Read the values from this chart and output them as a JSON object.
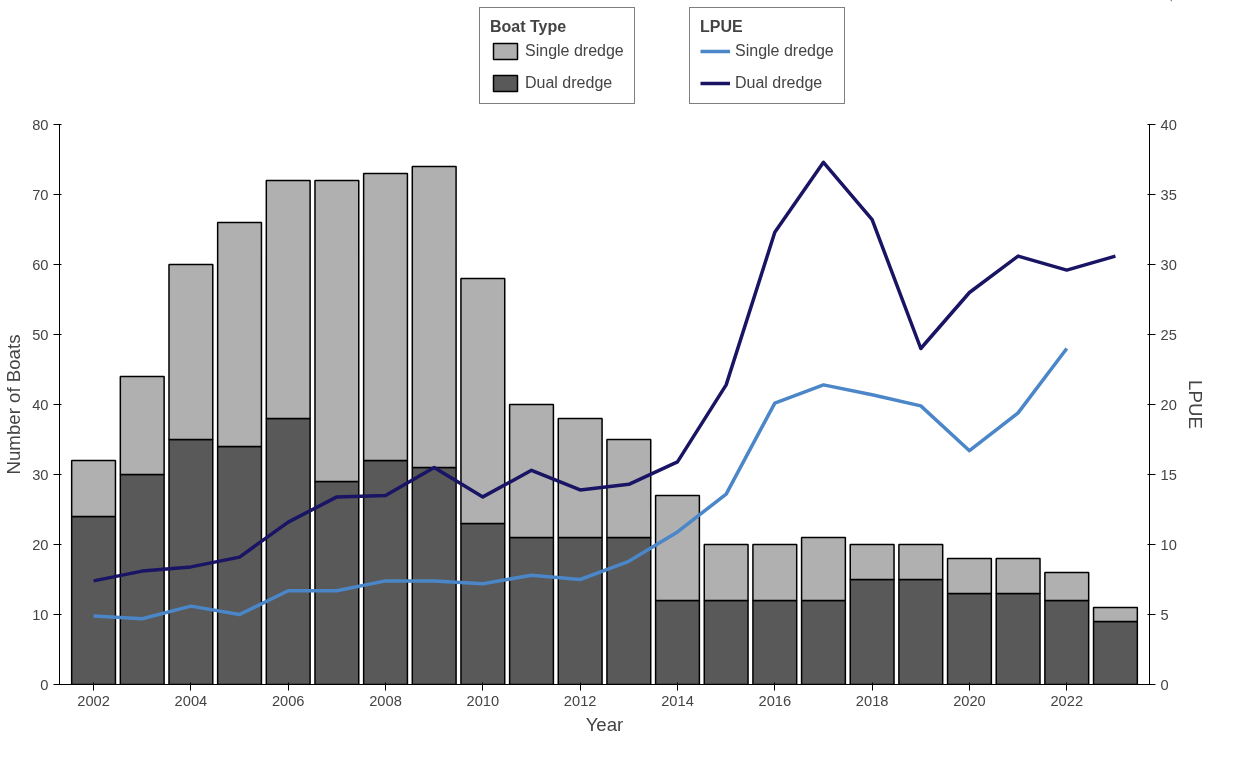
{
  "chart_data": {
    "type": "bar",
    "stacked": true,
    "xlabel": "Year",
    "ylabel": "Number of Boats",
    "y2label": "LPUE",
    "legend_title": [
      "Boat Type",
      "LPUE"
    ],
    "legend": "top",
    "grid": false,
    "x": [
      2002,
      2003,
      2004,
      2005,
      2006,
      2007,
      2008,
      2009,
      2010,
      2011,
      2012,
      2013,
      2014,
      2015,
      2016,
      2017,
      2018,
      2019,
      2020,
      2021,
      2022,
      2023
    ],
    "xlim": [
      2001.3,
      2023.7
    ],
    "xticks": [
      2002,
      2004,
      2006,
      2008,
      2010,
      2012,
      2014,
      2016,
      2018,
      2020,
      2022
    ],
    "ylim": [
      0,
      80
    ],
    "yticks": [
      0,
      10,
      20,
      30,
      40,
      50,
      60,
      70,
      80
    ],
    "y2lim": [
      0,
      40
    ],
    "y2ticks": [
      0,
      5,
      10,
      15,
      20,
      25,
      30,
      35,
      40
    ],
    "series": [
      {
        "name": "Dual dredge",
        "color": "#595959",
        "values": [
          24,
          30,
          35,
          34,
          38,
          29,
          32,
          31,
          23,
          21,
          21,
          21,
          12,
          12,
          12,
          12,
          15,
          15,
          13,
          13,
          12,
          9
        ]
      },
      {
        "name": "Single dredge",
        "color": "#b0b0b0",
        "values": [
          8,
          14,
          25,
          32,
          34,
          43,
          41,
          43,
          35,
          19,
          17,
          14,
          15,
          8,
          8,
          9,
          5,
          5,
          5,
          5,
          4,
          2
        ]
      },
      {
        "name": "Single dredge",
        "type": "line",
        "axis": "y2",
        "color": "#4a86c8",
        "values": [
          4.9,
          4.7,
          5.6,
          5.0,
          6.7,
          6.7,
          7.4,
          7.4,
          7.2,
          7.8,
          7.5,
          8.8,
          10.9,
          13.6,
          20.1,
          21.4,
          20.7,
          19.9,
          16.7,
          19.4,
          24.0,
          null
        ]
      },
      {
        "name": "Dual dredge",
        "type": "line",
        "axis": "y2",
        "color": "#1a1464",
        "values": [
          7.4,
          8.1,
          8.4,
          9.1,
          11.6,
          13.4,
          13.5,
          15.5,
          13.4,
          15.3,
          13.9,
          14.3,
          15.9,
          21.4,
          32.3,
          37.3,
          33.2,
          24.0,
          28.0,
          30.6,
          29.6,
          30.6
        ]
      }
    ]
  }
}
